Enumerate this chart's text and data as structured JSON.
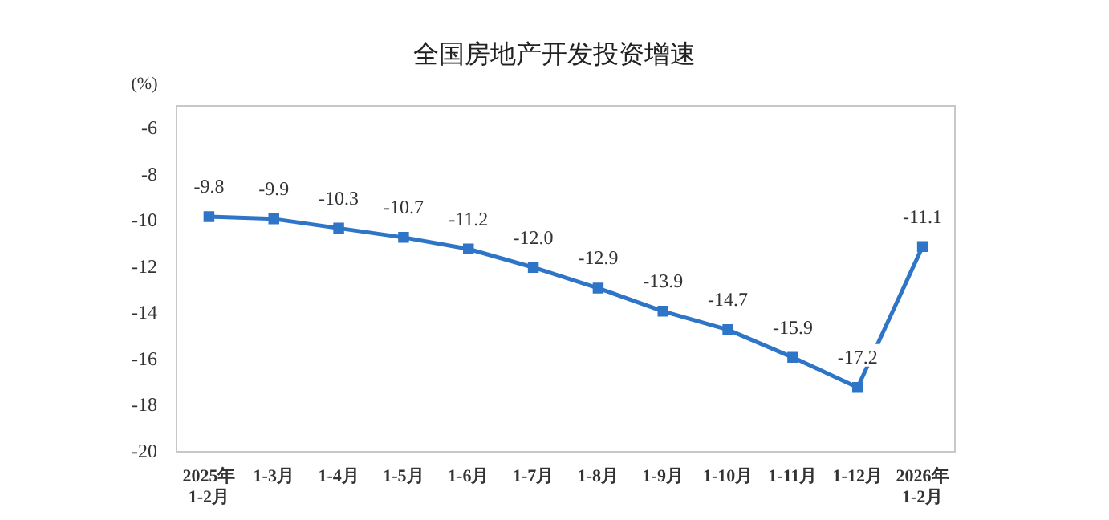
{
  "chart_data": {
    "type": "line",
    "title": "全国房地产开发投资增速",
    "ylabel": "(%)",
    "categories": [
      "2025年\n1-2月",
      "1-3月",
      "1-4月",
      "1-5月",
      "1-6月",
      "1-7月",
      "1-8月",
      "1-9月",
      "1-10月",
      "1-11月",
      "1-12月",
      "2026年\n1-2月"
    ],
    "series": [
      {
        "color": "#2e75c8",
        "values": [
          -9.8,
          -9.9,
          -10.3,
          -10.7,
          -11.2,
          -12.0,
          -12.9,
          -13.9,
          -14.7,
          -15.9,
          -17.2,
          -11.1
        ]
      }
    ],
    "ylim": [
      -20,
      -5
    ],
    "yticks": [
      -20,
      -18,
      -16,
      -14,
      -12,
      -10,
      -8,
      -6
    ],
    "value_labels": [
      "-9.8",
      "-9.9",
      "-10.3",
      "-10.7",
      "-11.2",
      "-12.0",
      "-12.9",
      "-13.9",
      "-14.7",
      "-15.9",
      "-17.2",
      "-11.1"
    ],
    "marker": "square",
    "line_style": "solid",
    "grid": false,
    "legend": false
  }
}
